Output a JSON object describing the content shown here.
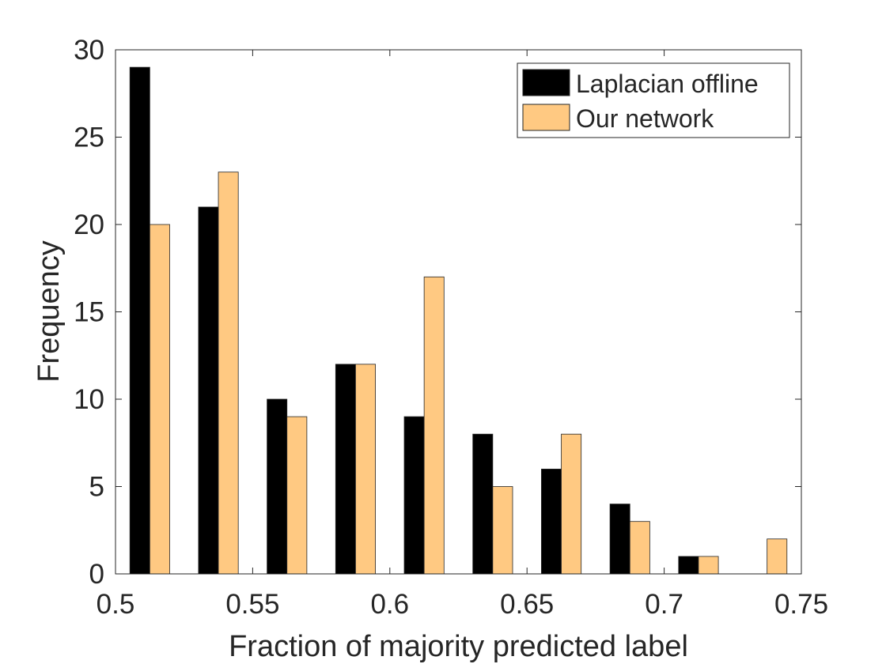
{
  "chart_data": {
    "type": "bar",
    "title": "",
    "xlabel": "Fraction of majority predicted label",
    "ylabel": "Frequency",
    "xlim": [
      0.5,
      0.75
    ],
    "ylim": [
      0,
      30
    ],
    "xticks": [
      0.5,
      0.55,
      0.6,
      0.65,
      0.7,
      0.75
    ],
    "xtick_labels": [
      "0.5",
      "0.55",
      "0.6",
      "0.65",
      "0.7",
      "0.75"
    ],
    "yticks": [
      0,
      5,
      10,
      15,
      20,
      25,
      30
    ],
    "ytick_labels": [
      "0",
      "5",
      "10",
      "15",
      "20",
      "25",
      "30"
    ],
    "x": [
      0.5125,
      0.5375,
      0.5625,
      0.5875,
      0.6125,
      0.6375,
      0.6625,
      0.6875,
      0.7125,
      0.7375
    ],
    "bin_width": 0.025,
    "series": [
      {
        "name": "Laplacian offline",
        "color": "#000000",
        "values": [
          29,
          21,
          10,
          12,
          9,
          8,
          6,
          4,
          1,
          0
        ]
      },
      {
        "name": "Our network",
        "color": "#FFC982",
        "values": [
          20,
          23,
          9,
          12,
          17,
          5,
          8,
          3,
          1,
          2
        ]
      }
    ],
    "legend_position": "top-right",
    "grid": false
  }
}
